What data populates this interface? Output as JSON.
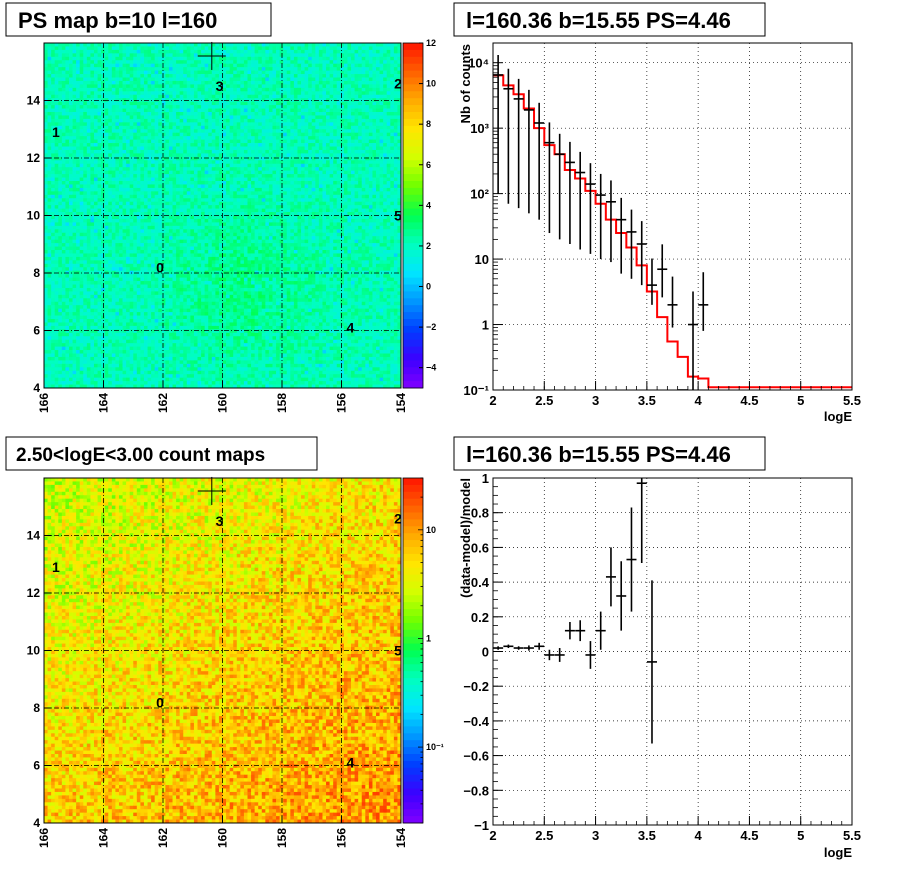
{
  "chart_data": [
    {
      "type": "heatmap",
      "title": "PS map b=10 l=160",
      "xticks": [
        "166",
        "164",
        "162",
        "160",
        "158",
        "156",
        "154"
      ],
      "yticks": [
        "4",
        "6",
        "8",
        "10",
        "12",
        "14"
      ],
      "xlim": [
        166,
        154
      ],
      "ylim": [
        4,
        16
      ],
      "colorbar": {
        "scale": "linear",
        "range": [
          -5,
          12
        ],
        "ticks": [
          "12",
          "10",
          "8",
          "6",
          "4",
          "2",
          "0",
          "−2",
          "−4"
        ]
      },
      "sources": [
        {
          "label": "0",
          "l": 162.1,
          "b": 8.2
        },
        {
          "label": "1",
          "l": 165.6,
          "b": 12.9
        },
        {
          "label": "2",
          "l": 154.1,
          "b": 14.6
        },
        {
          "label": "3",
          "l": 160.1,
          "b": 14.5
        },
        {
          "label": "4",
          "l": 155.7,
          "b": 6.1
        },
        {
          "label": "5",
          "l": 154.1,
          "b": 10.0
        }
      ],
      "marker": {
        "l": 160.36,
        "b": 15.55
      },
      "grid": true
    },
    {
      "type": "line",
      "title": "l=160.36 b=15.55 PS=4.46",
      "xlabel": "logE",
      "ylabel": "Nb of counts",
      "xlim": [
        2,
        5.5
      ],
      "ylim": [
        0.1,
        20000
      ],
      "yscale": "log",
      "xticks": [
        "2",
        "2.5",
        "3",
        "3.5",
        "4",
        "4.5",
        "5",
        "5.5"
      ],
      "yticks": [
        "10⁻¹",
        "1",
        "10",
        "10²",
        "10³",
        "10⁴"
      ],
      "grid": true,
      "series": [
        {
          "style": "points",
          "color": "#000000",
          "x": [
            2.05,
            2.15,
            2.25,
            2.35,
            2.45,
            2.55,
            2.65,
            2.75,
            2.85,
            2.95,
            3.05,
            3.15,
            3.25,
            3.35,
            3.45,
            3.55,
            3.65,
            3.75,
            3.85,
            3.95,
            4.05
          ],
          "y": [
            6500,
            4000,
            2800,
            1900,
            1200,
            600,
            400,
            300,
            210,
            140,
            95,
            75,
            40,
            26,
            17,
            4,
            7,
            2,
            0.1,
            1,
            2
          ],
          "yerr_low": [
            6400,
            3930,
            2740,
            1850,
            1160,
            575,
            380,
            283,
            196,
            128,
            85,
            66,
            34,
            21,
            13,
            2,
            4.4,
            1.1,
            0,
            0.9,
            1.2
          ],
          "yerr_high": [
            6600,
            4070,
            2860,
            1950,
            1240,
            625,
            420,
            317,
            224,
            152,
            105,
            84,
            46,
            31,
            21,
            6.2,
            9.8,
            3.4,
            0,
            2.2,
            4.3
          ]
        },
        {
          "style": "step",
          "color": "#ff0000",
          "x": [
            2.0,
            2.1,
            2.2,
            2.3,
            2.4,
            2.5,
            2.6,
            2.7,
            2.8,
            2.9,
            3.0,
            3.1,
            3.2,
            3.3,
            3.4,
            3.5,
            3.6,
            3.7,
            3.8,
            3.9,
            4.0,
            4.1,
            4.2,
            4.3,
            4.4,
            4.5,
            4.6,
            4.7,
            4.8,
            4.9,
            5.0,
            5.1,
            5.2,
            5.3,
            5.4
          ],
          "y": [
            6400,
            4500,
            3300,
            2000,
            1000,
            550,
            400,
            230,
            170,
            110,
            70,
            40,
            25,
            15,
            8,
            3.2,
            1.3,
            0.55,
            0.32,
            0.16,
            0.15,
            0.11,
            0.11,
            0.11,
            0.11,
            0.11,
            0.11,
            0.11,
            0.11,
            0.11,
            0.11,
            0.11,
            0.11,
            0.11,
            0.11
          ]
        }
      ]
    },
    {
      "type": "heatmap",
      "title": "2.50<logE<3.00 count maps",
      "xticks": [
        "166",
        "164",
        "162",
        "160",
        "158",
        "156",
        "154"
      ],
      "yticks": [
        "4",
        "6",
        "8",
        "10",
        "12",
        "14"
      ],
      "xlim": [
        166,
        154
      ],
      "ylim": [
        4,
        16
      ],
      "colorbar": {
        "scale": "log",
        "range": [
          0.02,
          30
        ],
        "ticks": [
          {
            "label": "10",
            "value": 10
          },
          {
            "label": "1",
            "value": 1
          },
          {
            "label": "10⁻¹",
            "value": 0.1
          }
        ]
      },
      "sources": [
        {
          "label": "0",
          "l": 162.1,
          "b": 8.2
        },
        {
          "label": "1",
          "l": 165.6,
          "b": 12.9
        },
        {
          "label": "2",
          "l": 154.1,
          "b": 14.6
        },
        {
          "label": "3",
          "l": 160.1,
          "b": 14.5
        },
        {
          "label": "4",
          "l": 155.7,
          "b": 6.1
        },
        {
          "label": "5",
          "l": 154.1,
          "b": 10.0
        }
      ],
      "marker": {
        "l": 160.36,
        "b": 15.55
      },
      "grid": true
    },
    {
      "type": "scatter",
      "title": "l=160.36 b=15.55 PS=4.46",
      "xlabel": "logE",
      "ylabel": "(data-model)/model",
      "xlim": [
        2,
        5.5
      ],
      "ylim": [
        -1,
        1
      ],
      "xticks": [
        "2",
        "2.5",
        "3",
        "3.5",
        "4",
        "4.5",
        "5",
        "5.5"
      ],
      "yticks": [
        "−1",
        "−0.8",
        "−0.6",
        "−0.4",
        "−0.2",
        "0",
        "0.2",
        "0.4",
        "0.6",
        "0.8",
        "1"
      ],
      "grid": true,
      "series": [
        {
          "style": "points",
          "color": "#000000",
          "x": [
            2.05,
            2.15,
            2.25,
            2.35,
            2.45,
            2.55,
            2.65,
            2.75,
            2.85,
            2.95,
            3.05,
            3.15,
            3.25,
            3.35,
            3.45,
            3.55
          ],
          "y": [
            0.02,
            0.03,
            0.02,
            0.02,
            0.03,
            -0.02,
            -0.02,
            0.12,
            0.12,
            -0.02,
            0.12,
            0.43,
            0.32,
            0.53,
            0.97,
            -0.06
          ],
          "yerr": [
            0.01,
            0.01,
            0.01,
            0.015,
            0.02,
            0.03,
            0.04,
            0.05,
            0.06,
            0.08,
            0.11,
            0.17,
            0.2,
            0.3,
            0.46,
            0.47
          ]
        }
      ]
    }
  ]
}
